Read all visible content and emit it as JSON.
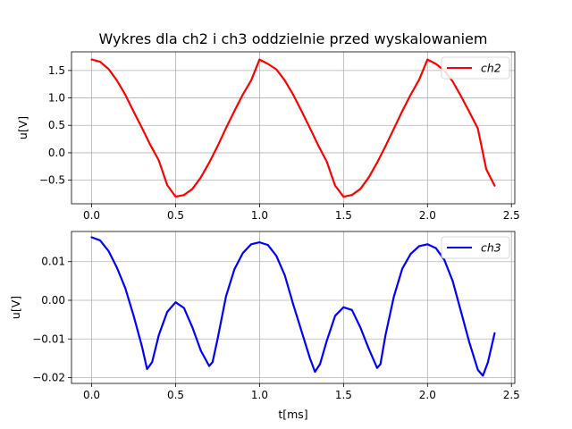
{
  "chart_data": {
    "title": "Wykres dla ch2 i ch3 oddzielnie przed wyskalowaniem",
    "type": "line",
    "subplots": [
      {
        "ylabel": "u[V]",
        "xlabel": "",
        "xlim": [
          -0.12,
          2.52
        ],
        "ylim": [
          -0.93,
          1.84
        ],
        "xticks": [
          0.0,
          0.5,
          1.0,
          1.5,
          2.0,
          2.5
        ],
        "xtick_labels": [
          "0.0",
          "0.5",
          "1.0",
          "1.5",
          "2.0",
          "2.5"
        ],
        "yticks": [
          -0.5,
          0.0,
          0.5,
          1.0,
          1.5
        ],
        "ytick_labels": [
          "−0.5",
          "0.0",
          "0.5",
          "1.0",
          "1.5"
        ],
        "grid": true,
        "legend": "top-right",
        "series": [
          {
            "name": "ch2",
            "color": "#ff0000",
            "x": [
              0.0,
              0.05,
              0.1,
              0.15,
              0.2,
              0.25,
              0.3,
              0.35,
              0.4,
              0.45,
              0.5,
              0.55,
              0.6,
              0.65,
              0.7,
              0.75,
              0.8,
              0.85,
              0.9,
              0.95,
              1.0,
              1.05,
              1.1,
              1.15,
              1.2,
              1.25,
              1.3,
              1.35,
              1.4,
              1.45,
              1.5,
              1.55,
              1.6,
              1.65,
              1.7,
              1.75,
              1.8,
              1.85,
              1.9,
              1.95,
              2.0,
              2.05,
              2.1,
              2.15,
              2.2,
              2.25,
              2.3,
              2.35,
              2.4
            ],
            "y": [
              1.7,
              1.66,
              1.53,
              1.32,
              1.06,
              0.75,
              0.45,
              0.14,
              -0.14,
              -0.59,
              -0.8,
              -0.77,
              -0.66,
              -0.45,
              -0.18,
              0.12,
              0.45,
              0.76,
              1.06,
              1.32,
              1.7,
              1.62,
              1.52,
              1.32,
              1.06,
              0.76,
              0.45,
              0.13,
              -0.16,
              -0.6,
              -0.8,
              -0.77,
              -0.66,
              -0.45,
              -0.18,
              0.12,
              0.44,
              0.76,
              1.06,
              1.33,
              1.7,
              1.62,
              1.5,
              1.3,
              1.03,
              0.74,
              0.44,
              -0.3,
              -0.6
            ]
          }
        ]
      },
      {
        "ylabel": "u[V]",
        "xlabel": "t[ms]",
        "xlim": [
          -0.12,
          2.52
        ],
        "ylim": [
          -0.0215,
          0.0178
        ],
        "xticks": [
          0.0,
          0.5,
          1.0,
          1.5,
          2.0,
          2.5
        ],
        "xtick_labels": [
          "0.0",
          "0.5",
          "1.0",
          "1.5",
          "2.0",
          "2.5"
        ],
        "yticks": [
          -0.02,
          -0.01,
          0.0,
          0.01
        ],
        "ytick_labels": [
          "−0.02",
          "−0.01",
          "0.00",
          "0.01"
        ],
        "grid": true,
        "legend": "top-right",
        "series": [
          {
            "name": "ch3",
            "color": "#0000ff",
            "x": [
              0.0,
              0.05,
              0.1,
              0.15,
              0.2,
              0.25,
              0.3,
              0.33,
              0.36,
              0.4,
              0.45,
              0.5,
              0.55,
              0.6,
              0.65,
              0.7,
              0.72,
              0.75,
              0.8,
              0.85,
              0.9,
              0.95,
              1.0,
              1.05,
              1.1,
              1.15,
              1.2,
              1.25,
              1.3,
              1.33,
              1.36,
              1.4,
              1.45,
              1.5,
              1.55,
              1.6,
              1.65,
              1.7,
              1.72,
              1.75,
              1.8,
              1.85,
              1.9,
              1.95,
              2.0,
              2.05,
              2.1,
              2.15,
              2.2,
              2.25,
              2.3,
              2.33,
              2.36,
              2.4
            ],
            "y": [
              0.0163,
              0.0155,
              0.0128,
              0.0085,
              0.0032,
              -0.004,
              -0.012,
              -0.0178,
              -0.016,
              -0.009,
              -0.003,
              -0.0005,
              -0.002,
              -0.007,
              -0.013,
              -0.017,
              -0.016,
              -0.01,
              0.001,
              0.008,
              0.0122,
              0.0145,
              0.015,
              0.0143,
              0.0115,
              0.0065,
              -0.001,
              -0.008,
              -0.015,
              -0.0185,
              -0.0165,
              -0.0105,
              -0.004,
              -0.0018,
              -0.0025,
              -0.007,
              -0.0125,
              -0.0175,
              -0.0165,
              -0.009,
              0.001,
              0.0082,
              0.012,
              0.014,
              0.0145,
              0.0135,
              0.0105,
              0.005,
              -0.003,
              -0.011,
              -0.018,
              -0.0195,
              -0.016,
              -0.0085
            ]
          }
        ]
      }
    ]
  }
}
